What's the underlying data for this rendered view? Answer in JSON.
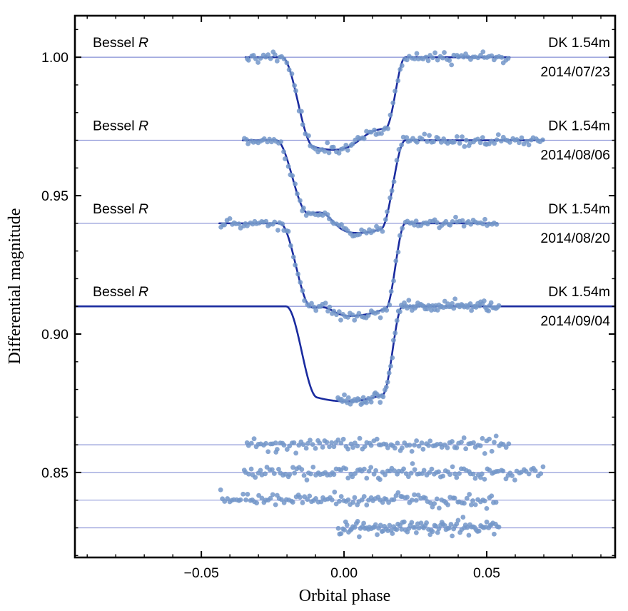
{
  "figure": {
    "background_color": "#ffffff",
    "frame_color": "#000000"
  },
  "chart_data": {
    "type": "scatter",
    "title": "",
    "xlabel": "Orbital phase",
    "ylabel": "Differential magnitude",
    "xlim": [
      -0.0943,
      0.095
    ],
    "ylim": [
      0.8193,
      1.015
    ],
    "grid": false,
    "frame": true,
    "ticks_inward": true,
    "x_major_ticks": [
      -0.05,
      0.0,
      0.05
    ],
    "x_tick_labels": [
      "−0.05",
      "0.00",
      "0.05"
    ],
    "x_minor_tick_step": 0.01,
    "y_major_ticks": [
      1.0,
      0.95,
      0.9,
      0.85
    ],
    "y_tick_labels": [
      "1.00",
      "0.95",
      "0.90",
      "0.85"
    ],
    "y_minor_tick_step": 0.01,
    "colors": {
      "point": "#7397c9",
      "model_line": "#1a2b9f",
      "baseline_line": "#929bda",
      "text": "#000000"
    },
    "series": [
      {
        "filter_prefix": "Bessel",
        "filter_band": "R",
        "telescope": "DK 1.54m",
        "date": "2014/07/23",
        "baseline_mag": 1.0,
        "transit_depth_mag": 0.0335,
        "contact_phases": [
          -0.0218,
          -0.0105,
          0.0145,
          0.0215
        ],
        "floor_min_phase": -0.003,
        "floor_curvature": 0.1,
        "spot_bump": {
          "center_phase": 0.0095,
          "sigma_phase": 0.0045,
          "rel_amplitude": 0.1
        },
        "data_phase_range": [
          -0.0345,
          0.058
        ],
        "n_points": 112,
        "noise_sigma_mag": 0.00085,
        "model_span": "data",
        "residual_offset_mag": 0.86,
        "residual_noise_sigma_mag": 0.0011,
        "seed": 11
      },
      {
        "filter_prefix": "Bessel",
        "filter_band": "R",
        "telescope": "DK 1.54m",
        "date": "2014/08/06",
        "baseline_mag": 0.97,
        "transit_depth_mag": 0.0335,
        "contact_phases": [
          -0.0238,
          -0.0125,
          0.0128,
          0.0215
        ],
        "floor_min_phase": 0.0045,
        "floor_curvature": 0.1,
        "spot_bump": {
          "center_phase": -0.0072,
          "sigma_phase": 0.0035,
          "rel_amplitude": 0.13
        },
        "data_phase_range": [
          -0.0355,
          0.07
        ],
        "n_points": 130,
        "noise_sigma_mag": 0.0009,
        "model_span": "data",
        "residual_offset_mag": 0.85,
        "residual_noise_sigma_mag": 0.0012,
        "seed": 22
      },
      {
        "filter_prefix": "Bessel",
        "filter_band": "R",
        "telescope": "DK 1.54m",
        "date": "2014/08/20",
        "baseline_mag": 0.94,
        "transit_depth_mag": 0.0335,
        "contact_phases": [
          -0.0225,
          -0.0113,
          0.0145,
          0.0215
        ],
        "floor_min_phase": 0.0015,
        "floor_curvature": 0.08,
        "spot_bump": {
          "center_phase": -0.0065,
          "sigma_phase": 0.003,
          "rel_amplitude": 0.06
        },
        "data_phase_range": [
          -0.0437,
          0.0537
        ],
        "n_points": 122,
        "noise_sigma_mag": 0.00095,
        "model_span": "data",
        "residual_offset_mag": 0.84,
        "residual_noise_sigma_mag": 0.0012,
        "seed": 33
      },
      {
        "filter_prefix": "Bessel",
        "filter_band": "R",
        "telescope": "DK 1.54m",
        "date": "2014/09/04",
        "baseline_mag": 0.91,
        "transit_depth_mag": 0.0343,
        "contact_phases": [
          -0.0203,
          -0.0093,
          0.0135,
          0.0205
        ],
        "floor_min_phase": 0.0005,
        "floor_curvature": 0.07,
        "spot_bump": null,
        "data_phase_range": [
          -0.0023,
          0.0545
        ],
        "n_points": 108,
        "noise_sigma_mag": 0.001,
        "model_span": "full",
        "residual_offset_mag": 0.83,
        "residual_noise_sigma_mag": 0.0013,
        "seed": 44
      }
    ]
  }
}
